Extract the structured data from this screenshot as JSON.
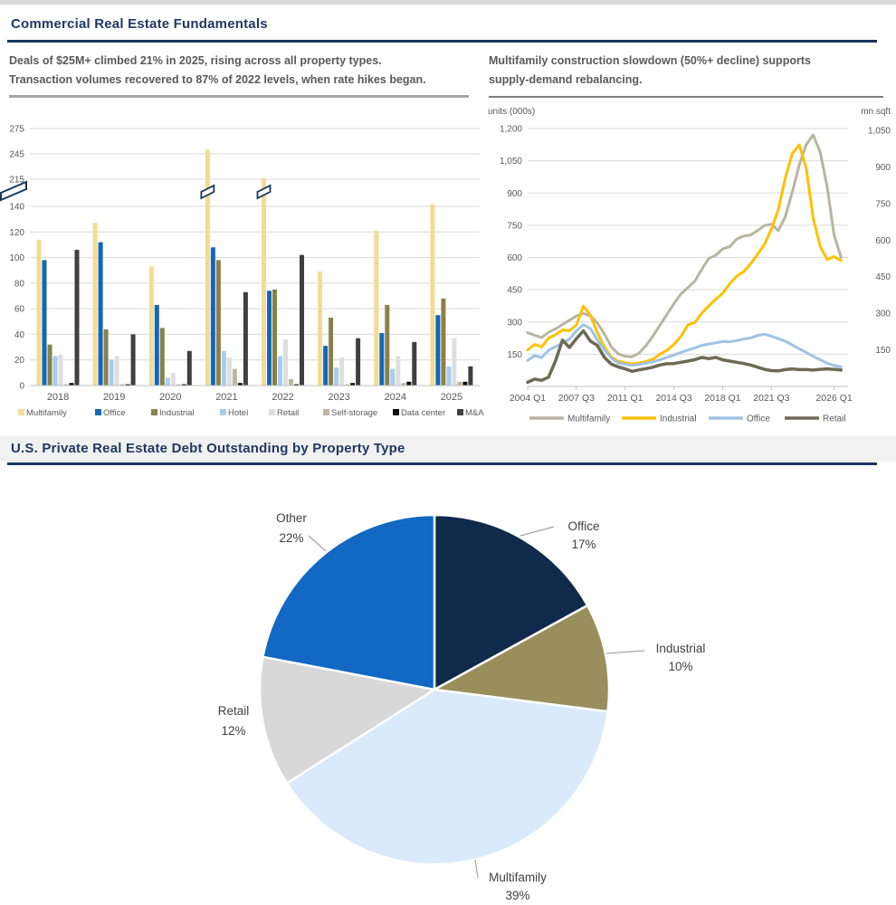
{
  "page": {
    "section1_title": "Commercial Real Estate Fundamentals",
    "section2_title": "U.S. Private Real Estate Debt Outstanding by Property Type"
  },
  "ledes": {
    "left": [
      "Deals of $25M+ climbed 21% in 2025, rising across all property types.",
      "Transaction volumes recovered to 87% of 2022 levels, when rate hikes began."
    ],
    "right": [
      "Multifamily construction slowdown (50%+ decline) supports",
      "supply-demand rebalancing."
    ]
  },
  "colors": {
    "accent_navy": "#1F3864",
    "rule_navy": "#17365D",
    "grid": "#D9D9D9",
    "axis_text": "#595959",
    "pie_label": "#404040",
    "leader": "#A6A6A6"
  },
  "chart_data": [
    {
      "id": "deal-volume-bars",
      "type": "bar",
      "categories": [
        "2018",
        "2019",
        "2020",
        "2021",
        "2022",
        "2023",
        "2024",
        "2025"
      ],
      "series": [
        {
          "name": "Multifamily",
          "color": "#F3DB96",
          "values": [
            114,
            127,
            93,
            250,
            216,
            89,
            121,
            146
          ]
        },
        {
          "name": "Office",
          "color": "#1467B8",
          "values": [
            98,
            112,
            63,
            108,
            74,
            31,
            41,
            55
          ]
        },
        {
          "name": "Industrial",
          "color": "#8B8049",
          "values": [
            32,
            44,
            45,
            98,
            75,
            53,
            63,
            68
          ]
        },
        {
          "name": "Hotel",
          "color": "#A6CEF2",
          "values": [
            23,
            20,
            6,
            27,
            23,
            14,
            13,
            15
          ]
        },
        {
          "name": "Retail",
          "color": "#DEDEDE",
          "values": [
            24,
            23,
            10,
            22,
            36,
            22,
            23,
            37
          ]
        },
        {
          "name": "Self-storage",
          "color": "#BDB6A0",
          "values": [
            1,
            1,
            1,
            13,
            5,
            1,
            2,
            3
          ]
        },
        {
          "name": "Data center",
          "color": "#0B0B0B",
          "values": [
            2,
            1,
            1,
            2,
            1,
            2,
            3,
            3
          ]
        },
        {
          "name": "M&A",
          "color": "#3F3F3F",
          "values": [
            106,
            40,
            27,
            73,
            102,
            37,
            34,
            15
          ]
        }
      ],
      "y_axis": {
        "lower_ticks": [
          0,
          20,
          40,
          60,
          80,
          100,
          120,
          140
        ],
        "upper_ticks": [
          215,
          245,
          275
        ],
        "axis_break": [
          140,
          215
        ]
      },
      "grid": true,
      "legend_position": "bottom"
    },
    {
      "id": "construction-lines",
      "type": "line",
      "x_start": 2004,
      "x_step": 0.5,
      "x_tick_labels": [
        "2004 Q1",
        "2007 Q3",
        "2011 Q1",
        "2014 Q3",
        "2018 Q1",
        "2021 Q3",
        "2026 Q1"
      ],
      "x_tick_positions": [
        2004,
        2007.5,
        2011,
        2014.5,
        2018,
        2021.5,
        2026
      ],
      "left_axis": {
        "title": "units (000s)",
        "ticks": [
          150,
          300,
          450,
          600,
          750,
          900,
          1050,
          1200
        ],
        "max": 1200
      },
      "right_axis": {
        "title": "mn sqft",
        "ticks": [
          150,
          300,
          450,
          600,
          750,
          900,
          1050
        ],
        "max": 1050
      },
      "grid": true,
      "legend_position": "bottom",
      "series": [
        {
          "name": "Multifamily",
          "axis": "left",
          "color": "#B8B4A4",
          "width": 3,
          "values": [
            250,
            238,
            228,
            252,
            268,
            288,
            308,
            328,
            340,
            328,
            295,
            245,
            185,
            152,
            140,
            138,
            155,
            190,
            235,
            285,
            335,
            385,
            430,
            460,
            490,
            545,
            595,
            610,
            640,
            650,
            685,
            700,
            705,
            725,
            748,
            755,
            725,
            790,
            905,
            1030,
            1125,
            1170,
            1090,
            930,
            705,
            600
          ]
        },
        {
          "name": "Industrial",
          "axis": "right",
          "color": "#FFC000",
          "width": 3,
          "values": [
            150,
            172,
            162,
            198,
            212,
            232,
            228,
            252,
            330,
            292,
            220,
            162,
            122,
            103,
            97,
            92,
            96,
            102,
            112,
            132,
            148,
            172,
            205,
            252,
            262,
            300,
            330,
            358,
            382,
            420,
            452,
            470,
            502,
            542,
            582,
            645,
            725,
            855,
            955,
            990,
            895,
            690,
            575,
            520,
            532,
            516
          ]
        },
        {
          "name": "Office",
          "axis": "right",
          "color": "#9DC3E6",
          "width": 3,
          "values": [
            107,
            126,
            118,
            148,
            163,
            178,
            194,
            228,
            253,
            238,
            190,
            150,
            116,
            96,
            91,
            86,
            90,
            95,
            101,
            110,
            119,
            129,
            139,
            149,
            158,
            168,
            174,
            179,
            184,
            183,
            188,
            194,
            199,
            209,
            214,
            206,
            196,
            186,
            170,
            154,
            139,
            124,
            109,
            95,
            86,
            80
          ]
        },
        {
          "name": "Retail",
          "axis": "right",
          "color": "#6E6A54",
          "width": 3.5,
          "values": [
            17,
            30,
            25,
            38,
            105,
            190,
            160,
            196,
            228,
            186,
            168,
            120,
            92,
            80,
            72,
            62,
            68,
            73,
            79,
            88,
            93,
            94,
            99,
            104,
            110,
            119,
            114,
            119,
            109,
            104,
            99,
            94,
            88,
            79,
            70,
            65,
            64,
            69,
            72,
            69,
            69,
            67,
            70,
            72,
            70,
            67
          ]
        }
      ]
    },
    {
      "id": "debt-by-property-pie",
      "type": "pie",
      "start_at_top": true,
      "clockwise": true,
      "slices": [
        {
          "label": "Office",
          "pct": 17,
          "color": "#102A4C"
        },
        {
          "label": "Industrial",
          "pct": 10,
          "color": "#9A8E5D"
        },
        {
          "label": "Multifamily",
          "pct": 39,
          "color": "#D9EAFB"
        },
        {
          "label": "Retail",
          "pct": 12,
          "color": "#D8D8D8"
        },
        {
          "label": "Other",
          "pct": 22,
          "color": "#1268C3"
        }
      ]
    }
  ]
}
